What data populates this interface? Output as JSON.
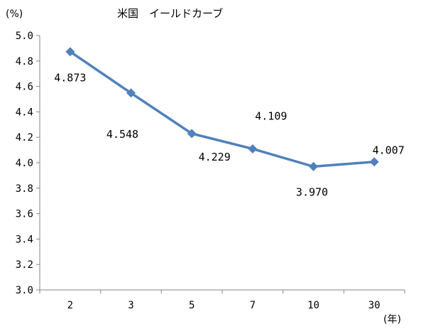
{
  "chart_data": {
    "type": "line",
    "title": "米国　イールドカーブ",
    "ylabel": "(%)",
    "xlabel": "(年)",
    "categories": [
      "2",
      "3",
      "5",
      "7",
      "10",
      "30"
    ],
    "series": [
      {
        "values": [
          4.873,
          4.548,
          4.229,
          4.109,
          3.97,
          4.007
        ],
        "labels": [
          "4.873",
          "4.548",
          "4.229",
          "4.109",
          "3.970",
          "4.007"
        ],
        "color": "#4f81bd"
      }
    ],
    "ylim": [
      3.0,
      5.0
    ],
    "yticks": [
      "3.0",
      "3.2",
      "3.4",
      "3.6",
      "3.8",
      "4.0",
      "4.2",
      "4.4",
      "4.6",
      "4.8",
      "5.0"
    ],
    "grid": false,
    "legend": "none"
  }
}
